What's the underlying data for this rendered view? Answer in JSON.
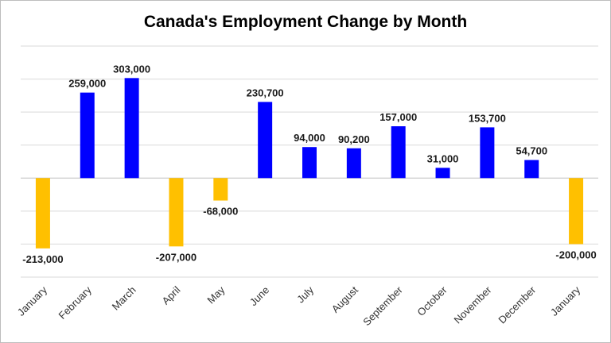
{
  "chart_data": {
    "type": "bar",
    "title": "Canada's Employment Change by Month",
    "xlabel": "",
    "ylabel": "",
    "categories": [
      "January",
      "February",
      "March",
      "April",
      "May",
      "June",
      "July",
      "August",
      "September",
      "October",
      "November",
      "December",
      "January"
    ],
    "values": [
      -213000,
      259000,
      303000,
      -207000,
      -68000,
      230700,
      94000,
      90200,
      157000,
      31000,
      153700,
      54700,
      -200000
    ],
    "value_labels": [
      "-213,000",
      "259,000",
      "303,000",
      "-207,000",
      "-68,000",
      "230,700",
      "94,000",
      "90,200",
      "157,000",
      "31,000",
      "153,700",
      "54,700",
      "-200,000"
    ],
    "ylim": [
      -300000,
      400000
    ],
    "grid": true,
    "legend": "none",
    "colors": {
      "positive": "#0000ff",
      "negative": "#ffc000"
    }
  }
}
